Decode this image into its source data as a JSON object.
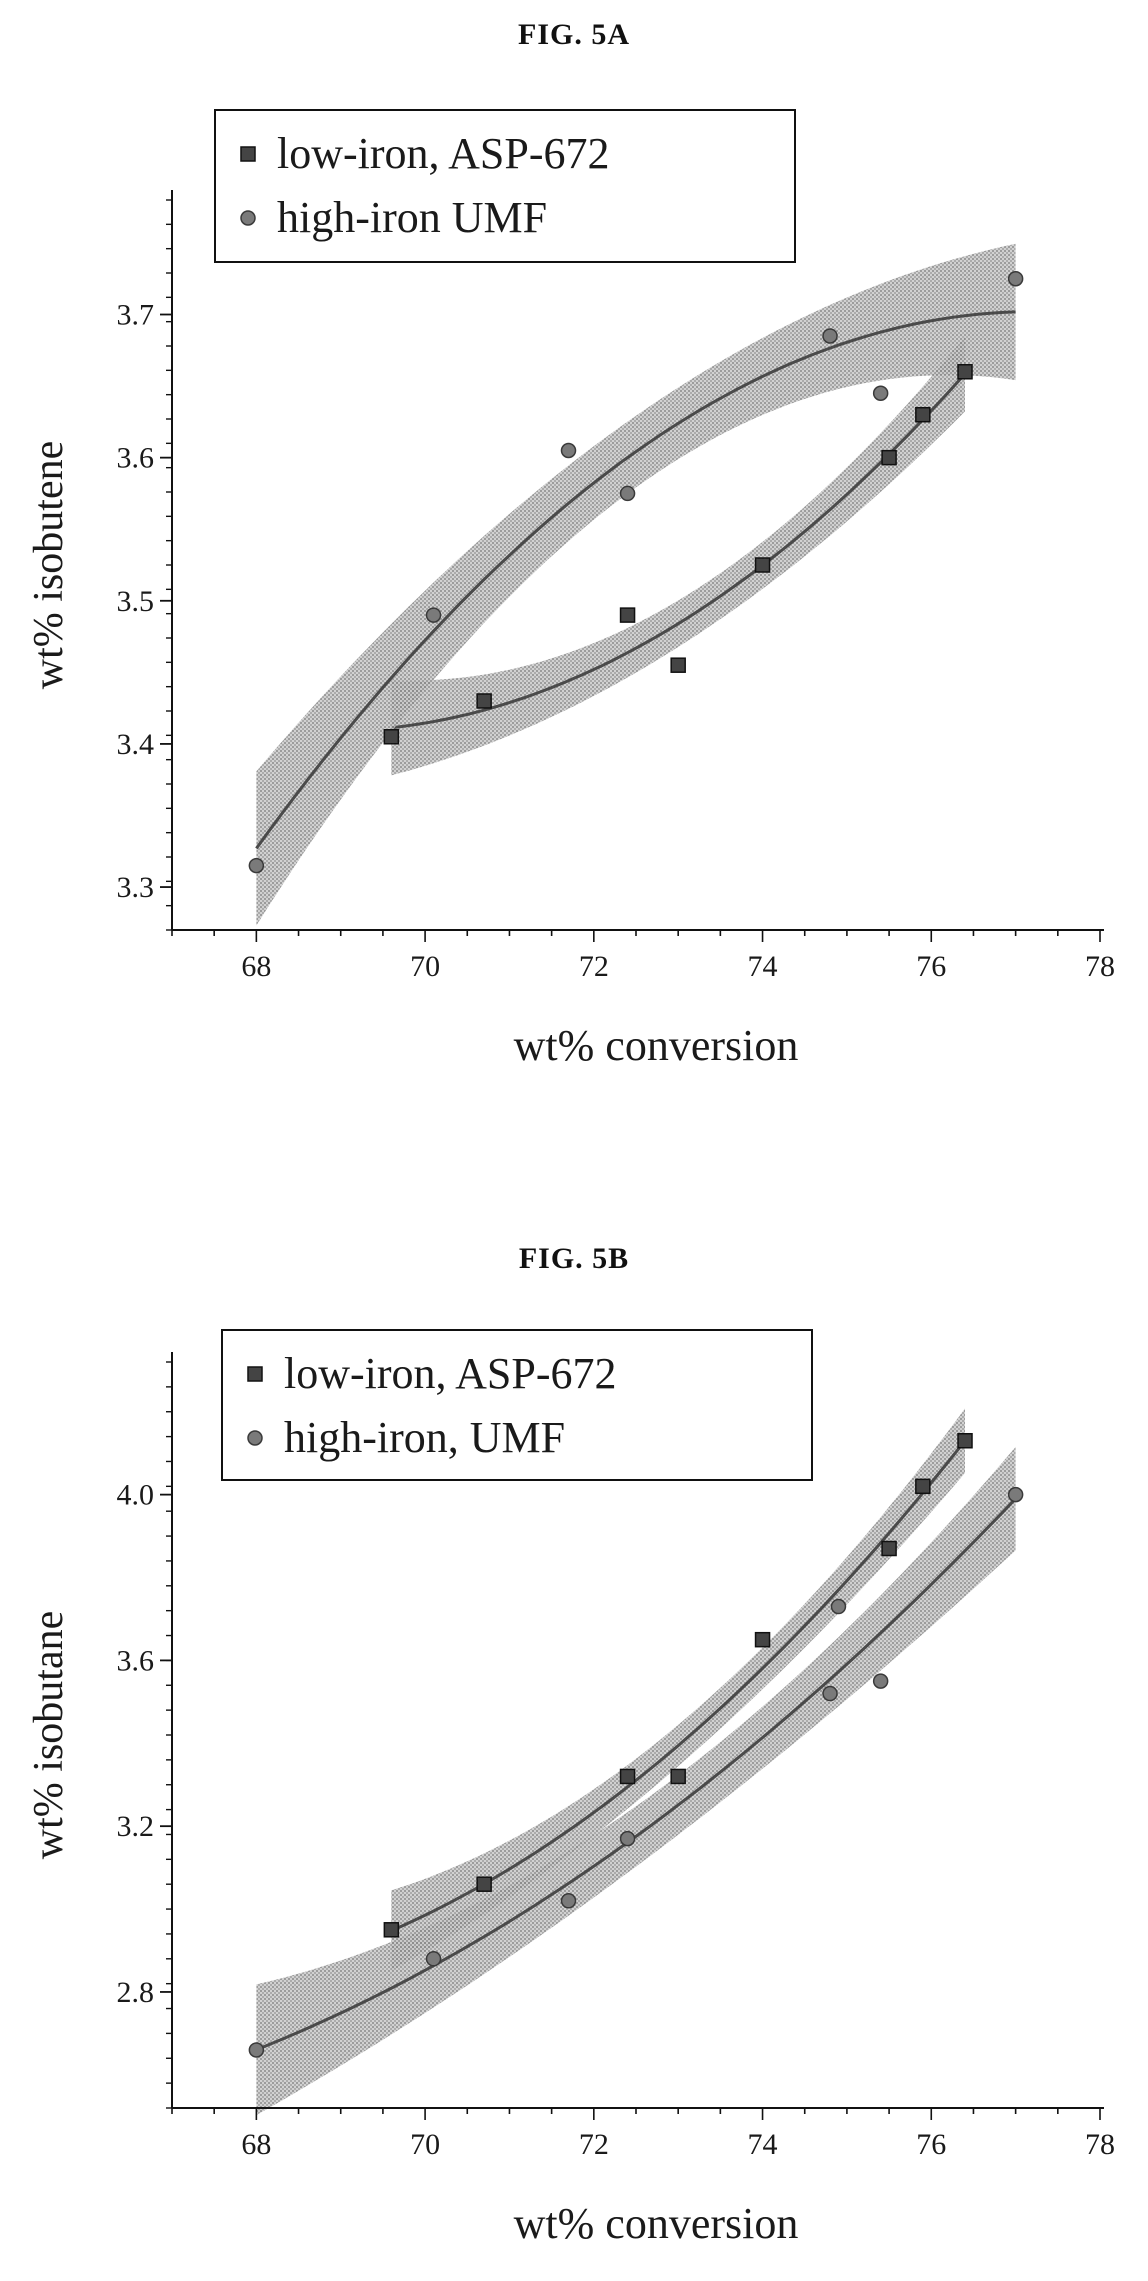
{
  "figures": [
    {
      "label": "FIG. 5A"
    },
    {
      "label": "FIG. 5B"
    }
  ],
  "chart_data": [
    {
      "type": "scatter",
      "title": "FIG. 5A",
      "xlabel": "wt% conversion",
      "ylabel": "wt% isobutene",
      "xlim": [
        67,
        78
      ],
      "ylim": [
        3.27,
        3.78
      ],
      "xticks": [
        "68",
        "70",
        "72",
        "74",
        "76",
        "78"
      ],
      "yticks": [
        "3.3",
        "3.4",
        "3.5",
        "3.6",
        "3.7"
      ],
      "grid": false,
      "legend": "top-left",
      "fit": "quadratic with confidence band",
      "series": [
        {
          "name": "low-iron, ASP-672",
          "marker": "square",
          "points": [
            [
              69.6,
              3.405
            ],
            [
              70.7,
              3.43
            ],
            [
              72.4,
              3.49
            ],
            [
              73.0,
              3.455
            ],
            [
              74.0,
              3.525
            ],
            [
              75.5,
              3.6
            ],
            [
              75.9,
              3.63
            ],
            [
              76.4,
              3.66
            ]
          ]
        },
        {
          "name": "high-iron UMF",
          "marker": "circle",
          "points": [
            [
              68.0,
              3.315
            ],
            [
              70.1,
              3.49
            ],
            [
              71.7,
              3.605
            ],
            [
              72.4,
              3.575
            ],
            [
              74.8,
              3.685
            ],
            [
              75.4,
              3.645
            ],
            [
              77.0,
              3.725
            ]
          ]
        }
      ]
    },
    {
      "type": "scatter",
      "title": "FIG. 5B",
      "xlabel": "wt% conversion",
      "ylabel": "wt% isobutane",
      "xlim": [
        67,
        78
      ],
      "ylim": [
        2.52,
        4.32
      ],
      "xticks": [
        "68",
        "70",
        "72",
        "74",
        "76",
        "78"
      ],
      "yticks": [
        "2.8",
        "3.2",
        "3.6",
        "4.0"
      ],
      "grid": false,
      "legend": "top-left",
      "fit": "quadratic with confidence band",
      "series": [
        {
          "name": "low-iron, ASP-672",
          "marker": "square",
          "points": [
            [
              69.6,
              2.95
            ],
            [
              70.7,
              3.06
            ],
            [
              72.4,
              3.32
            ],
            [
              73.0,
              3.32
            ],
            [
              74.0,
              3.65
            ],
            [
              75.5,
              3.87
            ],
            [
              75.9,
              4.02
            ],
            [
              76.4,
              4.13
            ]
          ]
        },
        {
          "name": "high-iron, UMF",
          "marker": "circle",
          "points": [
            [
              68.0,
              2.66
            ],
            [
              70.1,
              2.88
            ],
            [
              71.7,
              3.02
            ],
            [
              72.4,
              3.17
            ],
            [
              74.8,
              3.52
            ],
            [
              74.9,
              3.73
            ],
            [
              75.4,
              3.55
            ],
            [
              77.0,
              4.0
            ]
          ]
        }
      ]
    }
  ]
}
